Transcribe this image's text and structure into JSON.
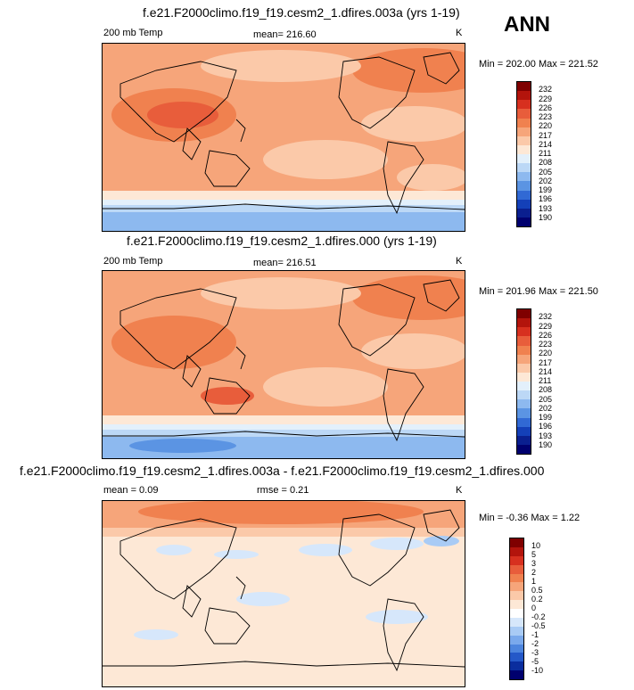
{
  "ann_label": "ANN",
  "panels": [
    {
      "title": "f.e21.F2000climo.f19_f19.cesm2_1.dfires.003a (yrs 1-19)",
      "left_label": "200 mb Temp",
      "mean_text": "mean= 216.60",
      "unit": "K",
      "minmax": "Min = 202.00 Max = 221.52",
      "colorbar": {
        "labels": [
          "232",
          "229",
          "226",
          "223",
          "220",
          "217",
          "214",
          "211",
          "208",
          "205",
          "202",
          "199",
          "196",
          "193",
          "190"
        ],
        "colors": [
          "#7f0000",
          "#b3140c",
          "#d7301f",
          "#e85d3b",
          "#f0814f",
          "#f6a57a",
          "#fbc9a9",
          "#fde8d6",
          "#e3f0fb",
          "#bcd8f6",
          "#8db9ef",
          "#5b94e3",
          "#3169d4",
          "#1440b8",
          "#0a1f8f",
          "#00006e"
        ]
      }
    },
    {
      "title": "f.e21.F2000climo.f19_f19.cesm2_1.dfires.000 (yrs 1-19)",
      "left_label": "200 mb Temp",
      "mean_text": "mean= 216.51",
      "unit": "K",
      "minmax": "Min = 201.96 Max = 221.50",
      "colorbar": {
        "labels": [
          "232",
          "229",
          "226",
          "223",
          "220",
          "217",
          "214",
          "211",
          "208",
          "205",
          "202",
          "199",
          "196",
          "193",
          "190"
        ],
        "colors": [
          "#7f0000",
          "#b3140c",
          "#d7301f",
          "#e85d3b",
          "#f0814f",
          "#f6a57a",
          "#fbc9a9",
          "#fde8d6",
          "#e3f0fb",
          "#bcd8f6",
          "#8db9ef",
          "#5b94e3",
          "#3169d4",
          "#1440b8",
          "#0a1f8f",
          "#00006e"
        ]
      }
    },
    {
      "title": "f.e21.F2000climo.f19_f19.cesm2_1.dfires.003a - f.e21.F2000climo.f19_f19.cesm2_1.dfires.000",
      "left_label": "mean =    0.09",
      "mean_text": "rmse =   0.21",
      "unit": "K",
      "minmax": "Min =  -0.36 Max =   1.22",
      "colorbar": {
        "labels": [
          "10",
          "5",
          "3",
          "2",
          "1",
          "0.5",
          "0.2",
          "0",
          "-0.2",
          "-0.5",
          "-1",
          "-2",
          "-3",
          "-5",
          "-10"
        ],
        "colors": [
          "#7f0000",
          "#b3140c",
          "#d7301f",
          "#e85d3b",
          "#f0814f",
          "#f6a57a",
          "#fbc9a9",
          "#fde8d6",
          "#ffffff",
          "#d6e7fb",
          "#a9cbf5",
          "#7aa9ec",
          "#4d85de",
          "#2458c8",
          "#0a2d9e",
          "#00006e"
        ]
      }
    }
  ]
}
